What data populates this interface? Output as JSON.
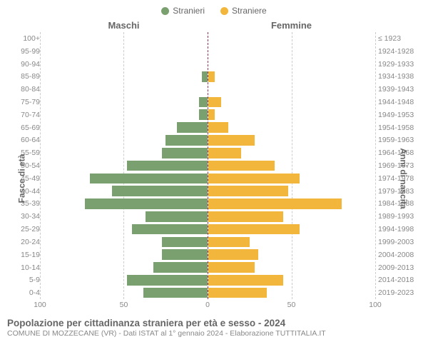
{
  "legend": {
    "male": {
      "label": "Stranieri",
      "color": "#7ba06f"
    },
    "female": {
      "label": "Straniere",
      "color": "#f2b63c"
    }
  },
  "headers": {
    "male": "Maschi",
    "female": "Femmine"
  },
  "axis_titles": {
    "left": "Fasce di età",
    "right": "Anni di nascita"
  },
  "x": {
    "max": 100,
    "ticks": [
      100,
      50,
      0,
      50,
      100
    ]
  },
  "age_groups": [
    "100+",
    "95-99",
    "90-94",
    "85-89",
    "80-84",
    "75-79",
    "70-74",
    "65-69",
    "60-64",
    "55-59",
    "50-54",
    "45-49",
    "40-44",
    "35-39",
    "30-34",
    "25-29",
    "20-24",
    "15-19",
    "10-14",
    "5-9",
    "0-4"
  ],
  "birth_years": [
    "≤ 1923",
    "1924-1928",
    "1929-1933",
    "1934-1938",
    "1939-1943",
    "1944-1948",
    "1949-1953",
    "1954-1958",
    "1959-1963",
    "1964-1968",
    "1969-1973",
    "1974-1978",
    "1979-1983",
    "1984-1988",
    "1989-1993",
    "1994-1998",
    "1999-2003",
    "2004-2008",
    "2009-2013",
    "2014-2018",
    "2019-2023"
  ],
  "male_values": [
    0,
    0,
    0,
    3,
    0,
    5,
    5,
    18,
    25,
    27,
    48,
    70,
    57,
    73,
    37,
    45,
    27,
    27,
    32,
    48,
    38
  ],
  "female_values": [
    0,
    0,
    0,
    4,
    0,
    8,
    4,
    12,
    28,
    20,
    40,
    55,
    48,
    80,
    45,
    55,
    25,
    30,
    28,
    45,
    35
  ],
  "colors": {
    "male_bar": "#7ba06f",
    "female_bar": "#f2b63c",
    "grid": "#cccccc",
    "center_line": "#993355",
    "text_muted": "#888888",
    "text_header": "#666666",
    "background": "#ffffff"
  },
  "footer": {
    "title": "Popolazione per cittadinanza straniera per età e sesso - 2024",
    "subtitle": "COMUNE DI MOZZECANE (VR) - Dati ISTAT al 1° gennaio 2024 - Elaborazione TUTTITALIA.IT"
  }
}
